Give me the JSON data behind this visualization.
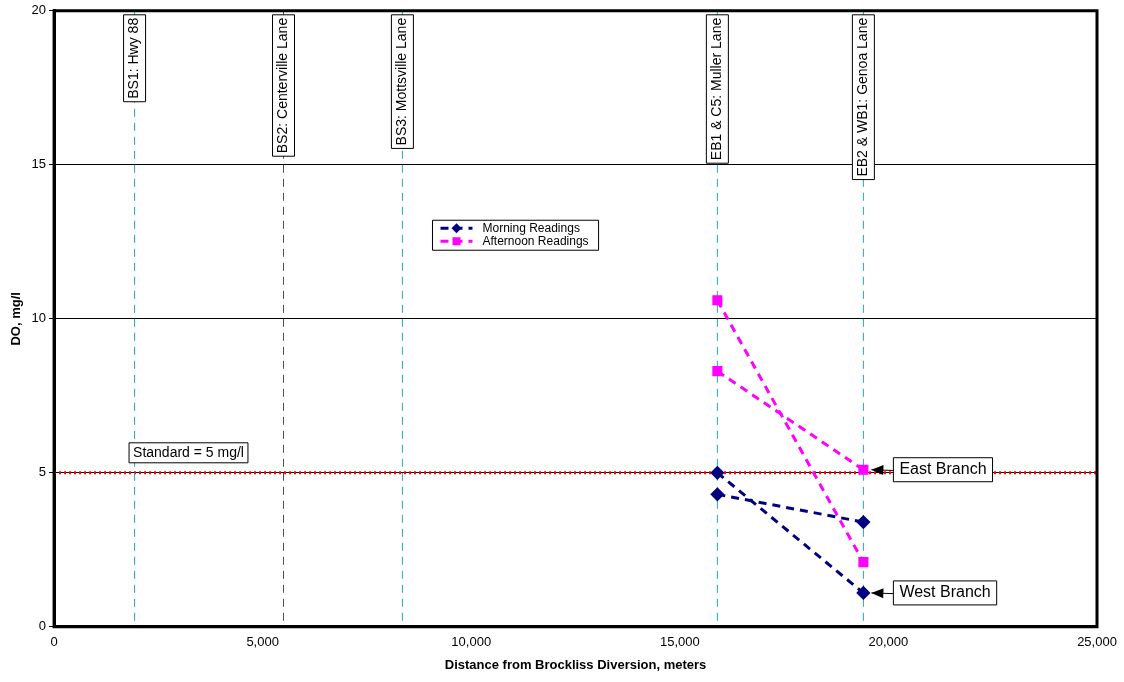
{
  "chart_data": {
    "type": "line",
    "xlabel": "Distance from Brockliss Diversion, meters",
    "ylabel": "DO, mg/l",
    "xlim": [
      0,
      25000
    ],
    "xticks": [
      {
        "value": 0,
        "label": "0"
      },
      {
        "value": 5000,
        "label": "5,000"
      },
      {
        "value": 10000,
        "label": "10,000"
      },
      {
        "value": 15000,
        "label": "15,000"
      },
      {
        "value": 20000,
        "label": "20,000"
      },
      {
        "value": 25000,
        "label": "25,000"
      }
    ],
    "ylim": [
      0,
      20
    ],
    "yticks": [
      0,
      5,
      10,
      15,
      20
    ],
    "grid": "y",
    "legend": "top",
    "line_style": "dashed",
    "x": [
      15900,
      19400
    ],
    "series": [
      {
        "name": "Morning Readings",
        "color": "#000080",
        "marker": "diamond",
        "values": [
          4.3,
          3.4
        ]
      },
      {
        "name": "Afternoon Readings",
        "color": "#ff00ff",
        "marker": "square",
        "values": [
          8.3,
          5.1
        ]
      },
      {
        "color": "#000080",
        "marker": "diamond",
        "values": [
          5.0,
          1.1
        ]
      },
      {
        "color": "#ff00ff",
        "marker": "square",
        "values": [
          10.6,
          2.1
        ]
      }
    ],
    "ref_lines": [
      {
        "axis": "y",
        "value": 5,
        "label": "Standard = 5 mg/l",
        "color": "#ff0000",
        "line_style": "dotted"
      },
      {
        "axis": "x",
        "value": 1930,
        "label": "BS1: Hwy 88",
        "color": "#20a8c0",
        "line_style": "dashed"
      },
      {
        "axis": "x",
        "value": 5500,
        "label": "BS2: Centerville Lane",
        "color": "#505050",
        "line_style": "dashed"
      },
      {
        "axis": "x",
        "value": 8350,
        "label": "BS3: Mottsville Lane",
        "color": "#20a8c0",
        "line_style": "dashed"
      },
      {
        "axis": "x",
        "value": 15900,
        "label": "EB1 & C5: Muller Lane",
        "color": "#20a8c0",
        "line_style": "dashed"
      },
      {
        "axis": "x",
        "value": 19400,
        "label": "EB2 & WB1: Genoa Lane",
        "color": "#20a8c0",
        "line_style": "dashed"
      }
    ],
    "annotations": [
      {
        "text": "East Branch",
        "x": 19400,
        "y": 5.1
      },
      {
        "text": "West Branch",
        "x": 19400,
        "y": 1.1
      }
    ]
  }
}
